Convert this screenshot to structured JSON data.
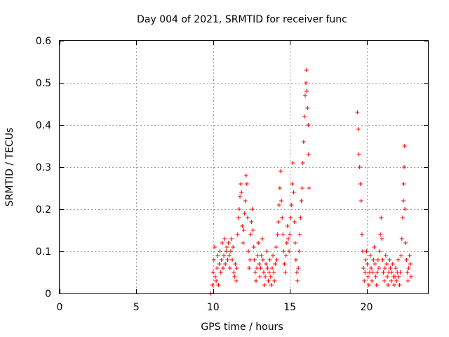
{
  "chart_data": {
    "type": "scatter",
    "title": "Day 004 of 2021, SRMTID for receiver func",
    "xlabel": "GPS time / hours",
    "ylabel": "SRMTID / TECUs",
    "xlim": [
      0,
      24
    ],
    "ylim": [
      0,
      0.6
    ],
    "x_ticks": [
      0,
      5,
      10,
      15,
      20
    ],
    "x_tick_labels": [
      "0",
      "5",
      "10",
      "15",
      "20"
    ],
    "y_ticks": [
      0,
      0.1,
      0.2,
      0.3,
      0.4,
      0.5,
      0.6
    ],
    "y_tick_labels": [
      "0",
      "0.1",
      "0.2",
      "0.3",
      "0.4",
      "0.5",
      "0.6"
    ],
    "grid": true,
    "marker": "plus",
    "marker_color": "#ff0000",
    "series": [
      {
        "name": "SRMTID",
        "points": [
          [
            9.85,
            0.0
          ],
          [
            9.95,
            0.02
          ],
          [
            10.0,
            0.05
          ],
          [
            10.05,
            0.08
          ],
          [
            10.1,
            0.11
          ],
          [
            10.15,
            0.04
          ],
          [
            10.2,
            0.03
          ],
          [
            10.25,
            0.06
          ],
          [
            10.3,
            0.09
          ],
          [
            10.35,
            0.02
          ],
          [
            10.4,
            0.07
          ],
          [
            10.45,
            0.1
          ],
          [
            10.5,
            0.05
          ],
          [
            10.55,
            0.08
          ],
          [
            10.6,
            0.12
          ],
          [
            10.65,
            0.06
          ],
          [
            10.7,
            0.09
          ],
          [
            10.75,
            0.13
          ],
          [
            10.8,
            0.07
          ],
          [
            10.85,
            0.1
          ],
          [
            10.9,
            0.11
          ],
          [
            10.95,
            0.08
          ],
          [
            11.0,
            0.12
          ],
          [
            11.05,
            0.09
          ],
          [
            11.1,
            0.06
          ],
          [
            11.15,
            0.1
          ],
          [
            11.2,
            0.13
          ],
          [
            11.25,
            0.08
          ],
          [
            11.3,
            0.11
          ],
          [
            11.35,
            0.05
          ],
          [
            11.4,
            0.04
          ],
          [
            11.45,
            0.07
          ],
          [
            11.5,
            0.03
          ],
          [
            11.55,
            0.06
          ],
          [
            11.6,
            0.14
          ],
          [
            11.65,
            0.18
          ],
          [
            11.7,
            0.2
          ],
          [
            11.75,
            0.23
          ],
          [
            11.8,
            0.26
          ],
          [
            11.85,
            0.24
          ],
          [
            11.9,
            0.16
          ],
          [
            11.95,
            0.12
          ],
          [
            12.0,
            0.15
          ],
          [
            12.05,
            0.19
          ],
          [
            12.1,
            0.22
          ],
          [
            12.15,
            0.28
          ],
          [
            12.2,
            0.26
          ],
          [
            12.25,
            0.18
          ],
          [
            12.3,
            0.1
          ],
          [
            12.35,
            0.06
          ],
          [
            12.4,
            0.08
          ],
          [
            12.45,
            0.14
          ],
          [
            12.5,
            0.17
          ],
          [
            12.55,
            0.2
          ],
          [
            12.6,
            0.15
          ],
          [
            12.65,
            0.11
          ],
          [
            12.7,
            0.08
          ],
          [
            12.75,
            0.05
          ],
          [
            12.8,
            0.03
          ],
          [
            12.85,
            0.06
          ],
          [
            12.9,
            0.09
          ],
          [
            12.95,
            0.12
          ],
          [
            13.0,
            0.07
          ],
          [
            13.05,
            0.04
          ],
          [
            13.1,
            0.06
          ],
          [
            13.15,
            0.09
          ],
          [
            13.2,
            0.13
          ],
          [
            13.25,
            0.08
          ],
          [
            13.3,
            0.05
          ],
          [
            13.35,
            0.02
          ],
          [
            13.4,
            0.04
          ],
          [
            13.45,
            0.07
          ],
          [
            13.5,
            0.1
          ],
          [
            13.55,
            0.06
          ],
          [
            13.6,
            0.03
          ],
          [
            13.65,
            0.05
          ],
          [
            13.7,
            0.08
          ],
          [
            13.75,
            0.04
          ],
          [
            13.8,
            0.02
          ],
          [
            13.85,
            0.06
          ],
          [
            13.9,
            0.09
          ],
          [
            13.95,
            0.05
          ],
          [
            14.0,
            0.03
          ],
          [
            14.05,
            0.07
          ],
          [
            14.1,
            0.11
          ],
          [
            14.15,
            0.08
          ],
          [
            14.2,
            0.14
          ],
          [
            14.25,
            0.17
          ],
          [
            14.3,
            0.21
          ],
          [
            14.35,
            0.25
          ],
          [
            14.4,
            0.29
          ],
          [
            14.45,
            0.22
          ],
          [
            14.5,
            0.18
          ],
          [
            14.55,
            0.14
          ],
          [
            14.6,
            0.1
          ],
          [
            14.65,
            0.07
          ],
          [
            14.7,
            0.05
          ],
          [
            14.75,
            0.09
          ],
          [
            14.8,
            0.12
          ],
          [
            14.85,
            0.16
          ],
          [
            14.9,
            0.13
          ],
          [
            14.95,
            0.1
          ],
          [
            15.0,
            0.14
          ],
          [
            15.05,
            0.18
          ],
          [
            15.1,
            0.21
          ],
          [
            15.15,
            0.26
          ],
          [
            15.2,
            0.31
          ],
          [
            15.25,
            0.24
          ],
          [
            15.3,
            0.17
          ],
          [
            15.35,
            0.12
          ],
          [
            15.4,
            0.08
          ],
          [
            15.45,
            0.05
          ],
          [
            15.5,
            0.03
          ],
          [
            15.55,
            0.06
          ],
          [
            15.6,
            0.1
          ],
          [
            15.65,
            0.14
          ],
          [
            15.7,
            0.18
          ],
          [
            15.75,
            0.22
          ],
          [
            15.8,
            0.25
          ],
          [
            15.85,
            0.31
          ],
          [
            15.9,
            0.36
          ],
          [
            15.95,
            0.42
          ],
          [
            16.0,
            0.47
          ],
          [
            16.05,
            0.5
          ],
          [
            16.08,
            0.53
          ],
          [
            16.1,
            0.48
          ],
          [
            16.15,
            0.44
          ],
          [
            16.2,
            0.4
          ],
          [
            16.22,
            0.33
          ],
          [
            16.25,
            0.25
          ],
          [
            19.4,
            0.43
          ],
          [
            19.45,
            0.39
          ],
          [
            19.5,
            0.33
          ],
          [
            19.55,
            0.3
          ],
          [
            19.6,
            0.26
          ],
          [
            19.65,
            0.22
          ],
          [
            19.7,
            0.14
          ],
          [
            19.75,
            0.1
          ],
          [
            19.8,
            0.06
          ],
          [
            19.85,
            0.03
          ],
          [
            19.9,
            0.05
          ],
          [
            19.95,
            0.08
          ],
          [
            20.0,
            0.1
          ],
          [
            20.05,
            0.07
          ],
          [
            20.1,
            0.04
          ],
          [
            20.15,
            0.02
          ],
          [
            20.2,
            0.05
          ],
          [
            20.25,
            0.09
          ],
          [
            20.3,
            0.06
          ],
          [
            20.35,
            0.03
          ],
          [
            20.4,
            0.05
          ],
          [
            20.45,
            0.08
          ],
          [
            20.5,
            0.11
          ],
          [
            20.55,
            0.07
          ],
          [
            20.6,
            0.04
          ],
          [
            20.65,
            0.02
          ],
          [
            20.7,
            0.05
          ],
          [
            20.75,
            0.08
          ],
          [
            20.8,
            0.06
          ],
          [
            20.85,
            0.1
          ],
          [
            20.9,
            0.14
          ],
          [
            20.95,
            0.18
          ],
          [
            21.0,
            0.13
          ],
          [
            21.05,
            0.08
          ],
          [
            21.1,
            0.05
          ],
          [
            21.15,
            0.03
          ],
          [
            21.2,
            0.06
          ],
          [
            21.25,
            0.09
          ],
          [
            21.3,
            0.07
          ],
          [
            21.35,
            0.04
          ],
          [
            21.4,
            0.02
          ],
          [
            21.45,
            0.05
          ],
          [
            21.5,
            0.08
          ],
          [
            21.55,
            0.06
          ],
          [
            21.6,
            0.03
          ],
          [
            21.65,
            0.05
          ],
          [
            21.7,
            0.07
          ],
          [
            21.75,
            0.04
          ],
          [
            21.8,
            0.02
          ],
          [
            21.85,
            0.04
          ],
          [
            21.9,
            0.06
          ],
          [
            21.95,
            0.03
          ],
          [
            22.0,
            0.05
          ],
          [
            22.05,
            0.08
          ],
          [
            22.1,
            0.04
          ],
          [
            22.15,
            0.02
          ],
          [
            22.2,
            0.05
          ],
          [
            22.25,
            0.09
          ],
          [
            22.3,
            0.13
          ],
          [
            22.35,
            0.18
          ],
          [
            22.4,
            0.22
          ],
          [
            22.42,
            0.26
          ],
          [
            22.45,
            0.3
          ],
          [
            22.48,
            0.35
          ],
          [
            22.5,
            0.2
          ],
          [
            22.55,
            0.12
          ],
          [
            22.6,
            0.08
          ],
          [
            22.65,
            0.05
          ],
          [
            22.7,
            0.03
          ],
          [
            22.75,
            0.06
          ],
          [
            22.8,
            0.09
          ],
          [
            22.85,
            0.07
          ],
          [
            22.9,
            0.04
          ]
        ]
      }
    ]
  }
}
